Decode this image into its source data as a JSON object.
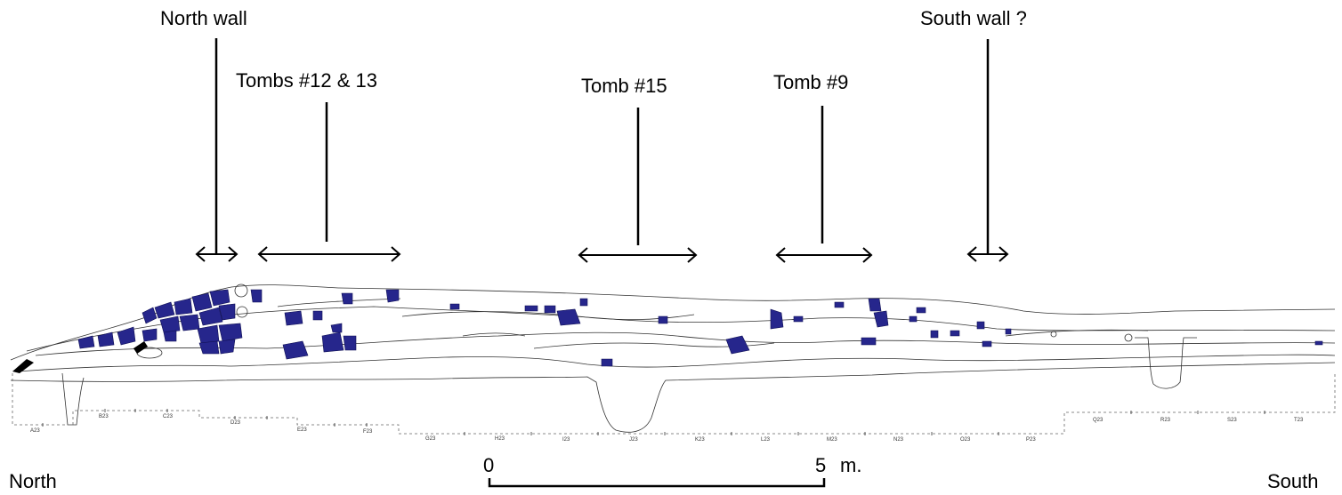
{
  "labels": {
    "north_wall": "North wall",
    "tombs_12_13": "Tombs #12 & 13",
    "tomb_15": "Tomb #15",
    "tomb_9": "Tomb #9",
    "south_wall": "South wall ?",
    "north": "North",
    "south": "South"
  },
  "scale": {
    "start": "0",
    "end": "5",
    "unit": "m."
  },
  "grid_units": [
    "A23",
    "B23",
    "C23",
    "D23",
    "E23",
    "F23",
    "G23",
    "H23",
    "I23",
    "J23",
    "K23",
    "L23",
    "M23",
    "N23",
    "O23",
    "P23",
    "Q23",
    "R23",
    "S23",
    "T23"
  ],
  "colors": {
    "stone_fill": "#26268c",
    "line": "#000000"
  }
}
